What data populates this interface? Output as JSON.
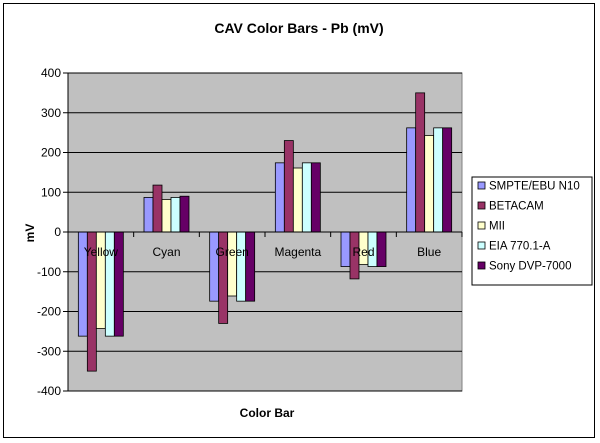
{
  "chart_data": {
    "type": "bar",
    "title": "CAV Color Bars - Pb (mV)",
    "xlabel": "Color Bar",
    "ylabel": "mV",
    "ylim": [
      -400,
      400
    ],
    "yticks": [
      400,
      300,
      200,
      100,
      0,
      -100,
      -200,
      -300,
      -400
    ],
    "categories": [
      "Yellow",
      "Cyan",
      "Green",
      "Magenta",
      "Red",
      "Blue"
    ],
    "series": [
      {
        "name": "SMPTE/EBU N10",
        "color": "#9999FF",
        "values": [
          -262,
          87,
          -174,
          174,
          -87,
          262
        ]
      },
      {
        "name": "BETACAM",
        "color": "#993366",
        "values": [
          -350,
          118,
          -230,
          230,
          -118,
          350
        ]
      },
      {
        "name": "MII",
        "color": "#FFFFCC",
        "values": [
          -243,
          82,
          -161,
          161,
          -82,
          243
        ]
      },
      {
        "name": "EIA 770.1-A",
        "color": "#CCFFFF",
        "values": [
          -262,
          87,
          -174,
          174,
          -87,
          262
        ]
      },
      {
        "name": "Sony DVP-7000",
        "color": "#660066",
        "values": [
          -262,
          90,
          -174,
          174,
          -87,
          262
        ]
      }
    ],
    "grid": true,
    "plot_background": "#C0C0C0",
    "legend_position": "right"
  }
}
